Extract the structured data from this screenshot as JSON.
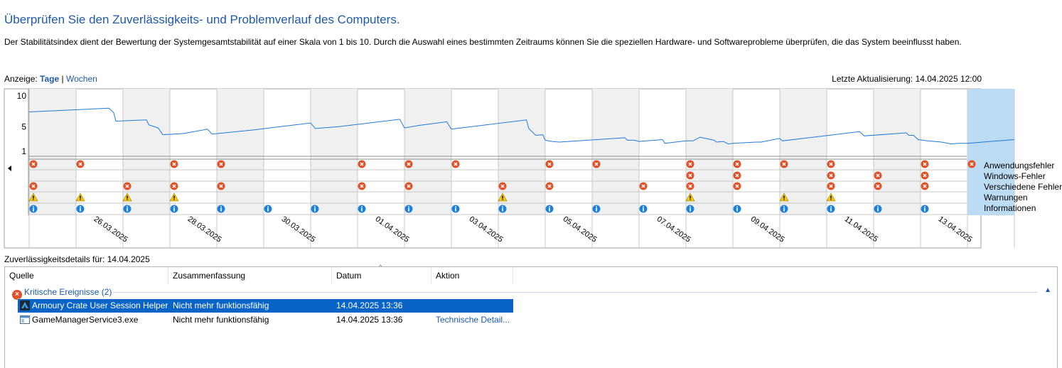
{
  "header": {
    "title": "Überprüfen Sie den Zuverlässigkeits- und Problemverlauf des Computers.",
    "description": "Der Stabilitätsindex dient der Bewertung der Systemgesamtstabilität auf einer Skala von 1 bis 10. Durch die Auswahl eines bestimmten Zeitraums können Sie die speziellen Hardware- und Softwareprobleme überprüfen, die das System beeinflusst haben."
  },
  "view": {
    "label": "Anzeige:",
    "days": "Tage",
    "separator": "|",
    "weeks": "Wochen"
  },
  "last_update": "Letzte Aktualisierung: 14.04.2025 12:00",
  "chart_data": {
    "type": "line",
    "y_ticks": [
      "10",
      "5",
      "1"
    ],
    "ylim": [
      1,
      10
    ],
    "columns": [
      "25.03.2025",
      "26.03.2025",
      "27.03.2025",
      "28.03.2025",
      "29.03.2025",
      "30.03.2025",
      "31.03.2025",
      "01.04.2025",
      "02.04.2025",
      "03.04.2025",
      "04.04.2025",
      "05.04.2025",
      "06.04.2025",
      "07.04.2025",
      "08.04.2025",
      "09.04.2025",
      "10.04.2025",
      "11.04.2025",
      "12.04.2025",
      "13.04.2025",
      "14.04.2025"
    ],
    "x_tick_labels": [
      "26.03.2025",
      "28.03.2025",
      "30.03.2025",
      "01.04.2025",
      "03.04.2025",
      "05.04.2025",
      "07.04.2025",
      "09.04.2025",
      "11.04.2025",
      "13.04.2025"
    ],
    "selected_column": "14.04.2025",
    "stability_index": [
      [
        0,
        7.4
      ],
      [
        1.7,
        8.0
      ],
      [
        1.8,
        7.3
      ],
      [
        1.85,
        5.9
      ],
      [
        2.5,
        6.1
      ],
      [
        2.55,
        5.3
      ],
      [
        2.75,
        4.8
      ],
      [
        2.85,
        3.7
      ],
      [
        3.3,
        3.9
      ],
      [
        3.8,
        4.6
      ],
      [
        3.9,
        3.8
      ],
      [
        4.8,
        4.5
      ],
      [
        6.0,
        5.6
      ],
      [
        6.1,
        4.7
      ],
      [
        6.6,
        5.0
      ],
      [
        7.9,
        6.2
      ],
      [
        8.0,
        4.8
      ],
      [
        8.3,
        5.2
      ],
      [
        8.9,
        5.8
      ],
      [
        9.0,
        4.6
      ],
      [
        10.6,
        6.1
      ],
      [
        10.65,
        4.7
      ],
      [
        10.8,
        3.6
      ],
      [
        10.95,
        3.7
      ],
      [
        11.0,
        2.8
      ],
      [
        11.15,
        2.6
      ],
      [
        11.3,
        2.5
      ],
      [
        12.7,
        3.2
      ],
      [
        12.75,
        2.8
      ],
      [
        12.9,
        2.8
      ],
      [
        13.0,
        2.6
      ],
      [
        13.5,
        2.9
      ],
      [
        13.55,
        2.3
      ],
      [
        14.0,
        2.7
      ],
      [
        14.15,
        2.7
      ],
      [
        14.3,
        3.3
      ],
      [
        14.6,
        2.8
      ],
      [
        14.65,
        2.5
      ],
      [
        14.8,
        2.6
      ],
      [
        14.9,
        2.2
      ],
      [
        15.0,
        2.3
      ],
      [
        15.5,
        2.5
      ],
      [
        15.6,
        2.5
      ],
      [
        16.0,
        3.1
      ],
      [
        16.05,
        2.7
      ],
      [
        17.7,
        4.2
      ],
      [
        17.8,
        3.5
      ],
      [
        18.7,
        4.0
      ],
      [
        18.75,
        3.6
      ],
      [
        18.85,
        3.6
      ],
      [
        18.95,
        2.9
      ],
      [
        19.15,
        2.7
      ],
      [
        19.45,
        2.5
      ],
      [
        19.65,
        2.2
      ],
      [
        19.8,
        2.3
      ],
      [
        20.0,
        2.3
      ],
      [
        21.0,
        2.9
      ]
    ],
    "event_rows": [
      {
        "name": "Anwendungsfehler",
        "type": "error",
        "columns": [
          0,
          1,
          3,
          4,
          7,
          8,
          9,
          11,
          12,
          14,
          15,
          16,
          17,
          19,
          20
        ]
      },
      {
        "name": "Windows-Fehler",
        "type": "error",
        "columns": [
          14,
          15,
          17,
          18,
          19
        ]
      },
      {
        "name": "Verschiedene Fehler",
        "type": "error",
        "columns": [
          0,
          2,
          3,
          4,
          7,
          8,
          10,
          11,
          13,
          14,
          15,
          17,
          18,
          19
        ]
      },
      {
        "name": "Warnungen",
        "type": "warning",
        "columns": [
          0,
          1,
          2,
          3,
          10,
          14,
          16,
          17
        ]
      },
      {
        "name": "Informationen",
        "type": "info",
        "columns": [
          0,
          1,
          2,
          3,
          4,
          5,
          6,
          7,
          8,
          9,
          10,
          11,
          12,
          13,
          14,
          15,
          16,
          17,
          18,
          19
        ]
      }
    ],
    "colors": {
      "line": "#1e7ad8",
      "shade": "#f0f0f0",
      "selected": "#bcdcf5",
      "error": "#e0522a",
      "warning": "#f2c811",
      "info": "#1f82d6"
    }
  },
  "legend": [
    "Anwendungsfehler",
    "Windows-Fehler",
    "Verschiedene Fehler",
    "Warnungen",
    "Informationen"
  ],
  "details": {
    "label": "Zuverlässigkeitsdetails für: 14.04.2025",
    "columns": [
      "Quelle",
      "Zusammenfassung",
      "Datum",
      "Aktion"
    ],
    "group": "Kritische Ereignisse (2)",
    "rows": [
      {
        "source": "Armoury Crate User Session Helper",
        "summary": "Nicht mehr funktionsfähig",
        "date": "14.04.2025 13:36",
        "action": "",
        "icon": "armoury-crate-app-icon",
        "selected": true
      },
      {
        "source": "GameManagerService3.exe",
        "summary": "Nicht mehr funktionsfähig",
        "date": "14.04.2025 13:36",
        "action": "Technische Detail...",
        "icon": "exe-window-icon",
        "selected": false
      }
    ]
  }
}
